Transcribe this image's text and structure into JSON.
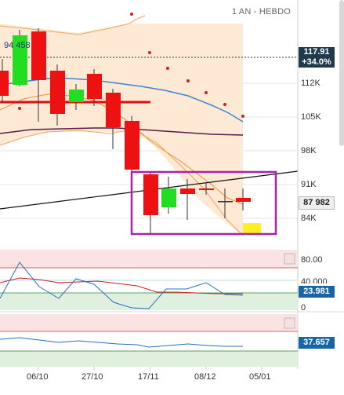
{
  "header": {
    "period": "1 AN - HEBDO"
  },
  "price_axis": {
    "ticks": [
      "112K",
      "105K",
      "98K",
      "91K",
      "84K"
    ]
  },
  "price_tags": {
    "last_value": "117.91",
    "last_change": "+34.0%",
    "current": "87 982"
  },
  "annotation": {
    "volume_label": "94 458"
  },
  "time_axis": {
    "ticks": [
      "06/10",
      "27/10",
      "17/11",
      "08/12",
      "05/01"
    ]
  },
  "oscillator1": {
    "levels": [
      "80.00",
      "40.000",
      "0"
    ],
    "current": "23.981"
  },
  "oscillator2": {
    "current": "37.657"
  },
  "colors": {
    "bull": "#22dd22",
    "bear": "#ee1111",
    "band_fill": "#fde9d4",
    "highlight": "#aa22aa",
    "ma_blue": "#3a85d8",
    "ma_purple": "#5a1a4a",
    "red_dot": "#cc2222"
  }
}
